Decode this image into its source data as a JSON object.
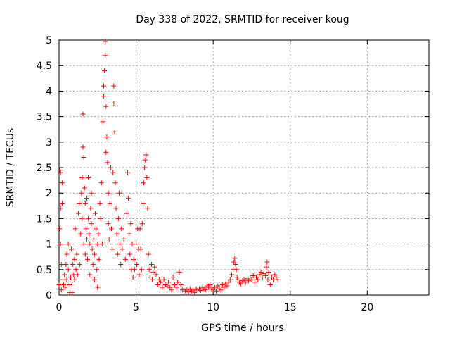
{
  "chart_data": {
    "type": "scatter",
    "title": "Day 338 of 2022, SRMTID for receiver koug",
    "xlabel": "GPS time / hours",
    "ylabel": "SRMTID / TECUs",
    "xlim": [
      0,
      24
    ],
    "ylim": [
      0,
      5
    ],
    "xticks": [
      0,
      5,
      10,
      15,
      20
    ],
    "xtick_labels": [
      "0",
      "5",
      "10",
      "15",
      "20"
    ],
    "yticks": [
      0,
      0.5,
      1,
      1.5,
      2,
      2.5,
      3,
      3.5,
      4,
      4.5,
      5
    ],
    "ytick_labels": [
      "0",
      "0.5",
      "1",
      "1.5",
      "2",
      "2.5",
      "3",
      "3.5",
      "4",
      "4.5",
      "5"
    ],
    "grid": true,
    "marker": "+",
    "color": "#ff0000",
    "series": [
      {
        "name": "SRMTID",
        "points": [
          [
            0.0,
            0.2
          ],
          [
            0.05,
            1.3
          ],
          [
            0.05,
            2.45
          ],
          [
            0.1,
            2.4
          ],
          [
            0.1,
            1.7
          ],
          [
            0.1,
            1.0
          ],
          [
            0.15,
            0.6
          ],
          [
            0.15,
            0.1
          ],
          [
            0.2,
            1.8
          ],
          [
            0.2,
            2.2
          ],
          [
            0.25,
            0.3
          ],
          [
            0.3,
            0.2
          ],
          [
            0.35,
            0.4
          ],
          [
            0.4,
            0.15
          ],
          [
            0.45,
            0.6
          ],
          [
            0.5,
            0.8
          ],
          [
            0.5,
            0.3
          ],
          [
            0.6,
            1.0
          ],
          [
            0.6,
            0.5
          ],
          [
            0.7,
            0.2
          ],
          [
            0.7,
            0.05
          ],
          [
            0.75,
            0.35
          ],
          [
            0.8,
            0.9
          ],
          [
            0.85,
            0.05
          ],
          [
            0.9,
            0.6
          ],
          [
            0.95,
            0.4
          ],
          [
            1.0,
            0.3
          ],
          [
            1.0,
            0.7
          ],
          [
            1.05,
            1.3
          ],
          [
            1.1,
            0.5
          ],
          [
            1.15,
            0.8
          ],
          [
            1.2,
            0.4
          ],
          [
            1.25,
            1.6
          ],
          [
            1.3,
            1.8
          ],
          [
            1.35,
            0.6
          ],
          [
            1.4,
            1.2
          ],
          [
            1.45,
            2.0
          ],
          [
            1.5,
            2.3
          ],
          [
            1.5,
            1.5
          ],
          [
            1.55,
            2.9
          ],
          [
            1.55,
            3.55
          ],
          [
            1.6,
            2.7
          ],
          [
            1.6,
            1.0
          ],
          [
            1.65,
            2.1
          ],
          [
            1.7,
            1.8
          ],
          [
            1.7,
            0.8
          ],
          [
            1.75,
            1.3
          ],
          [
            1.8,
            1.9
          ],
          [
            1.8,
            1.1
          ],
          [
            1.85,
            0.7
          ],
          [
            1.9,
            1.5
          ],
          [
            1.9,
            2.3
          ],
          [
            1.95,
            1.2
          ],
          [
            2.0,
            1.0
          ],
          [
            2.0,
            0.4
          ],
          [
            2.05,
            1.7
          ],
          [
            2.1,
            2.0
          ],
          [
            2.1,
            1.4
          ],
          [
            2.15,
            0.9
          ],
          [
            2.2,
            0.6
          ],
          [
            2.25,
            1.1
          ],
          [
            2.3,
            0.3
          ],
          [
            2.3,
            0.8
          ],
          [
            2.35,
            1.6
          ],
          [
            2.4,
            1.3
          ],
          [
            2.45,
            0.5
          ],
          [
            2.5,
            1.0
          ],
          [
            2.5,
            0.15
          ],
          [
            2.55,
            1.2
          ],
          [
            2.6,
            0.7
          ],
          [
            2.65,
            1.8
          ],
          [
            2.7,
            1.5
          ],
          [
            2.75,
            2.2
          ],
          [
            2.8,
            1.0
          ],
          [
            2.85,
            3.4
          ],
          [
            2.9,
            3.9
          ],
          [
            2.9,
            4.1
          ],
          [
            2.95,
            4.4
          ],
          [
            3.0,
            4.97
          ],
          [
            3.0,
            4.7
          ],
          [
            3.05,
            3.7
          ],
          [
            3.05,
            2.8
          ],
          [
            3.1,
            3.1
          ],
          [
            3.15,
            2.6
          ],
          [
            3.2,
            2.0
          ],
          [
            3.2,
            1.4
          ],
          [
            3.25,
            1.1
          ],
          [
            3.3,
            1.8
          ],
          [
            3.35,
            2.5
          ],
          [
            3.4,
            1.3
          ],
          [
            3.45,
            0.9
          ],
          [
            3.5,
            2.4
          ],
          [
            3.55,
            3.75
          ],
          [
            3.55,
            4.1
          ],
          [
            3.6,
            3.2
          ],
          [
            3.65,
            2.2
          ],
          [
            3.7,
            1.7
          ],
          [
            3.75,
            1.2
          ],
          [
            3.8,
            0.8
          ],
          [
            3.85,
            1.5
          ],
          [
            3.9,
            2.0
          ],
          [
            3.95,
            1.0
          ],
          [
            4.0,
            0.6
          ],
          [
            4.05,
            1.3
          ],
          [
            4.1,
            0.9
          ],
          [
            4.2,
            1.1
          ],
          [
            4.3,
            0.7
          ],
          [
            4.4,
            1.6
          ],
          [
            4.45,
            2.4
          ],
          [
            4.5,
            1.9
          ],
          [
            4.55,
            1.2
          ],
          [
            4.6,
            0.8
          ],
          [
            4.65,
            1.4
          ],
          [
            4.7,
            0.5
          ],
          [
            4.75,
            1.0
          ],
          [
            4.8,
            0.35
          ],
          [
            4.85,
            0.7
          ],
          [
            4.9,
            0.5
          ],
          [
            5.0,
            1.0
          ],
          [
            5.05,
            0.6
          ],
          [
            5.1,
            1.3
          ],
          [
            5.15,
            0.9
          ],
          [
            5.2,
            0.4
          ],
          [
            5.25,
            1.3
          ],
          [
            5.3,
            0.9
          ],
          [
            5.35,
            0.5
          ],
          [
            5.4,
            1.4
          ],
          [
            5.45,
            1.8
          ],
          [
            5.5,
            2.2
          ],
          [
            5.55,
            2.5
          ],
          [
            5.6,
            2.65
          ],
          [
            5.65,
            2.75
          ],
          [
            5.7,
            2.3
          ],
          [
            5.75,
            1.7
          ],
          [
            5.8,
            0.8
          ],
          [
            5.85,
            0.5
          ],
          [
            5.9,
            0.35
          ],
          [
            6.0,
            0.6
          ],
          [
            6.05,
            0.3
          ],
          [
            6.1,
            0.45
          ],
          [
            6.2,
            0.55
          ],
          [
            6.3,
            0.4
          ],
          [
            6.4,
            0.2
          ],
          [
            6.5,
            0.3
          ],
          [
            6.6,
            0.25
          ],
          [
            6.7,
            0.15
          ],
          [
            6.8,
            0.3
          ],
          [
            6.9,
            0.2
          ],
          [
            7.0,
            0.18
          ],
          [
            7.1,
            0.25
          ],
          [
            7.2,
            0.15
          ],
          [
            7.3,
            0.1
          ],
          [
            7.4,
            0.35
          ],
          [
            7.5,
            0.2
          ],
          [
            7.6,
            0.15
          ],
          [
            7.7,
            0.25
          ],
          [
            7.8,
            0.45
          ],
          [
            7.9,
            0.2
          ],
          [
            8.0,
            0.1
          ],
          [
            8.1,
            0.12
          ],
          [
            8.2,
            0.08
          ],
          [
            8.3,
            0.1
          ],
          [
            8.4,
            0.06
          ],
          [
            8.5,
            0.12
          ],
          [
            8.6,
            0.08
          ],
          [
            8.7,
            0.1
          ],
          [
            8.8,
            0.05
          ],
          [
            8.9,
            0.12
          ],
          [
            9.0,
            0.1
          ],
          [
            9.1,
            0.12
          ],
          [
            9.2,
            0.09
          ],
          [
            9.3,
            0.15
          ],
          [
            9.4,
            0.12
          ],
          [
            9.5,
            0.1
          ],
          [
            9.6,
            0.18
          ],
          [
            9.7,
            0.15
          ],
          [
            9.8,
            0.2
          ],
          [
            9.9,
            0.12
          ],
          [
            10.0,
            0.1
          ],
          [
            10.1,
            0.15
          ],
          [
            10.2,
            0.08
          ],
          [
            10.3,
            0.18
          ],
          [
            10.4,
            0.12
          ],
          [
            10.5,
            0.1
          ],
          [
            10.6,
            0.2
          ],
          [
            10.7,
            0.15
          ],
          [
            10.8,
            0.22
          ],
          [
            10.9,
            0.18
          ],
          [
            11.0,
            0.25
          ],
          [
            11.1,
            0.3
          ],
          [
            11.2,
            0.4
          ],
          [
            11.3,
            0.5
          ],
          [
            11.35,
            0.65
          ],
          [
            11.4,
            0.72
          ],
          [
            11.45,
            0.6
          ],
          [
            11.5,
            0.5
          ],
          [
            11.55,
            0.35
          ],
          [
            11.6,
            0.3
          ],
          [
            11.7,
            0.25
          ],
          [
            11.8,
            0.22
          ],
          [
            11.9,
            0.28
          ],
          [
            12.0,
            0.3
          ],
          [
            12.1,
            0.25
          ],
          [
            12.2,
            0.32
          ],
          [
            12.3,
            0.28
          ],
          [
            12.4,
            0.35
          ],
          [
            12.5,
            0.3
          ],
          [
            12.6,
            0.38
          ],
          [
            12.7,
            0.25
          ],
          [
            12.8,
            0.35
          ],
          [
            12.9,
            0.3
          ],
          [
            13.0,
            0.4
          ],
          [
            13.1,
            0.45
          ],
          [
            13.2,
            0.35
          ],
          [
            13.3,
            0.42
          ],
          [
            13.4,
            0.38
          ],
          [
            13.45,
            0.55
          ],
          [
            13.5,
            0.65
          ],
          [
            13.55,
            0.3
          ],
          [
            13.6,
            0.45
          ],
          [
            13.7,
            0.2
          ],
          [
            13.8,
            0.35
          ],
          [
            13.9,
            0.3
          ],
          [
            14.0,
            0.4
          ],
          [
            14.1,
            0.35
          ],
          [
            14.2,
            0.3
          ]
        ]
      }
    ]
  }
}
